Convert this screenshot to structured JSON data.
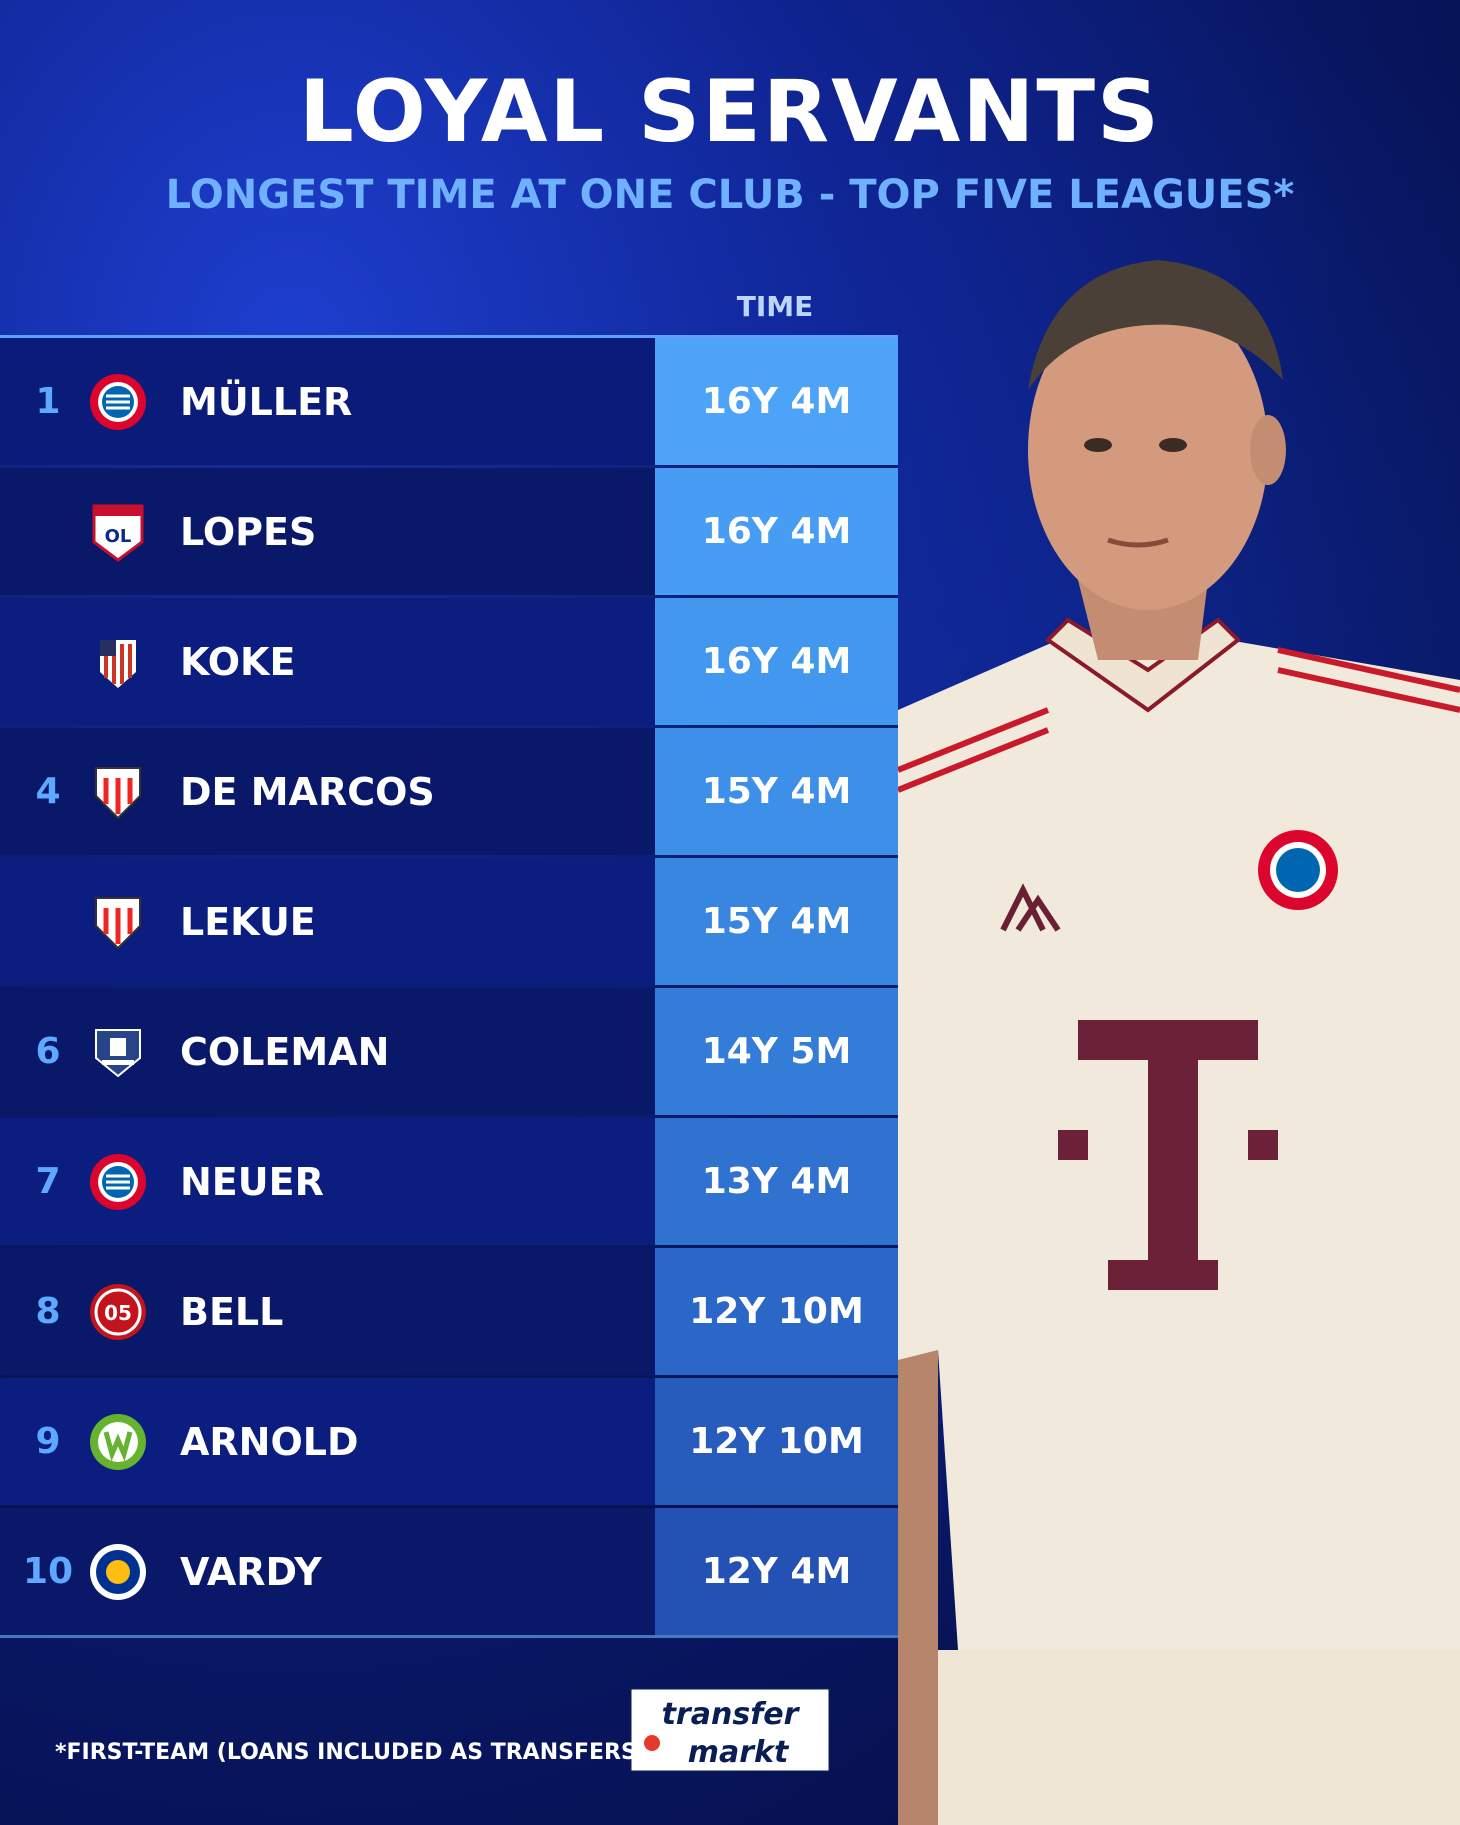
{
  "title": "LOYAL SERVANTS",
  "subtitle": "LONGEST TIME AT ONE CLUB - TOP FIVE LEAGUES*",
  "time_header": "TIME",
  "rows": [
    {
      "rank": "1",
      "name": "MÜLLER",
      "time": "16Y 4M",
      "club_icon": "bayern-munich-crest-icon"
    },
    {
      "rank": "",
      "name": "LOPES",
      "time": "16Y 4M",
      "club_icon": "olympique-lyonnais-crest-icon"
    },
    {
      "rank": "",
      "name": "KOKE",
      "time": "16Y 4M",
      "club_icon": "atletico-madrid-crest-icon"
    },
    {
      "rank": "4",
      "name": "DE MARCOS",
      "time": "15Y 4M",
      "club_icon": "athletic-club-crest-icon"
    },
    {
      "rank": "",
      "name": "LEKUE",
      "time": "15Y 4M",
      "club_icon": "athletic-club-crest-icon"
    },
    {
      "rank": "6",
      "name": "COLEMAN",
      "time": "14Y 5M",
      "club_icon": "everton-crest-icon"
    },
    {
      "rank": "7",
      "name": "NEUER",
      "time": "13Y 4M",
      "club_icon": "bayern-munich-crest-icon"
    },
    {
      "rank": "8",
      "name": "BELL",
      "time": "12Y 10M",
      "club_icon": "mainz-05-crest-icon"
    },
    {
      "rank": "9",
      "name": "ARNOLD",
      "time": "12Y 10M",
      "club_icon": "vfl-wolfsburg-crest-icon"
    },
    {
      "rank": "10",
      "name": "VARDY",
      "time": "12Y 4M",
      "club_icon": "leicester-city-crest-icon"
    }
  ],
  "footnote": "*FIRST-TEAM (LOANS INCLUDED AS TRANSFERS)",
  "logo": {
    "line1": "transfer",
    "line2": "markt"
  },
  "colors": {
    "accent": "#6fb1ff",
    "time_cell_top": "#4aa0f5",
    "time_cell_bottom": "#2b4fc0"
  }
}
